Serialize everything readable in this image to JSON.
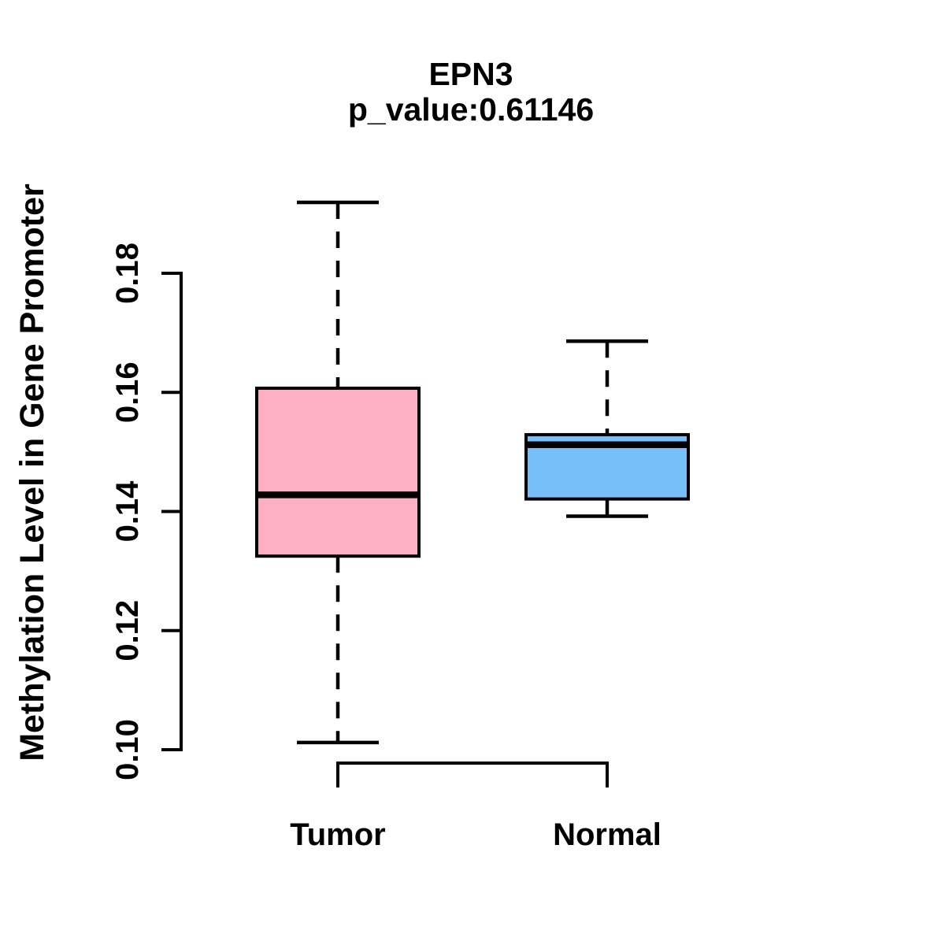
{
  "figure": {
    "title": "EPN3",
    "subtitle": "p_value:0.61146",
    "ylabel": "Methylation Level in Gene Promoter"
  },
  "colors": {
    "tumor_fill": "#FFAFC1",
    "normal_fill": "#77BFF8",
    "line": "#000000",
    "background": "#FFFFFF"
  },
  "chart_data": {
    "type": "boxplot",
    "title": "EPN3",
    "subtitle": "p_value:0.61146",
    "xlabel": "",
    "ylabel": "Methylation Level in Gene Promoter",
    "categories": [
      "Tumor",
      "Normal"
    ],
    "y_ticks": [
      "0.10",
      "0.12",
      "0.14",
      "0.16",
      "0.18"
    ],
    "y_axis_range": [
      0.1,
      0.18
    ],
    "grid": false,
    "legend": false,
    "outliers": [],
    "series": [
      {
        "name": "Tumor",
        "whisker_low": 0.1012,
        "q1": 0.1325,
        "median": 0.1428,
        "q3": 0.1607,
        "whisker_high": 0.1919,
        "fill_color": "#FFAFC1"
      },
      {
        "name": "Normal",
        "whisker_low": 0.1392,
        "q1": 0.1421,
        "median": 0.1512,
        "q3": 0.1529,
        "whisker_high": 0.1686,
        "fill_color": "#77BFF8"
      }
    ]
  }
}
